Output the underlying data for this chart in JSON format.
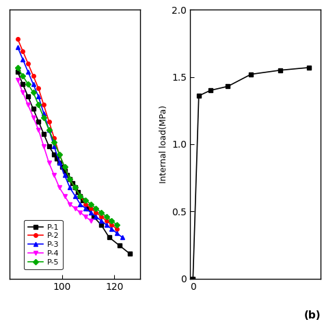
{
  "left_panel": {
    "series": {
      "P-1": {
        "color": "#000000",
        "marker": "s",
        "x": [
          83,
          85,
          87,
          89,
          91,
          93,
          95,
          97,
          98,
          99,
          100,
          101,
          102,
          103,
          104,
          105,
          106,
          107,
          108,
          110,
          112,
          115,
          118,
          122,
          126
        ],
        "y": [
          60,
          57,
          54,
          51,
          48,
          45,
          42,
          40,
          39,
          38,
          37,
          36,
          35,
          34,
          33,
          32,
          31,
          30,
          29,
          27,
          25,
          23,
          20,
          18,
          16
        ]
      },
      "P-2": {
        "color": "#ff0000",
        "marker": "o",
        "x": [
          83,
          85,
          87,
          89,
          91,
          93,
          95,
          97,
          99,
          101,
          103,
          105,
          107,
          109,
          111,
          113,
          115,
          117,
          119,
          121
        ],
        "y": [
          68,
          65,
          62,
          59,
          56,
          52,
          48,
          44,
          40,
          37,
          34,
          32,
          30,
          28,
          27,
          26,
          25,
          24,
          23,
          22
        ]
      },
      "P-3": {
        "color": "#0000ff",
        "marker": "^",
        "x": [
          83,
          85,
          87,
          89,
          91,
          93,
          95,
          97,
          99,
          101,
          103,
          105,
          107,
          109,
          111,
          113,
          115,
          117,
          119,
          121,
          123
        ],
        "y": [
          66,
          63,
          60,
          57,
          54,
          50,
          46,
          42,
          38,
          35,
          32,
          30,
          28,
          27,
          26,
          25,
          24,
          23,
          22,
          21,
          20
        ]
      },
      "P-4": {
        "color": "#ff00ff",
        "marker": "v",
        "x": [
          83,
          85,
          87,
          89,
          91,
          93,
          95,
          97,
          99,
          101,
          103,
          105,
          107,
          109,
          111
        ],
        "y": [
          58,
          55,
          52,
          49,
          46,
          42,
          38,
          35,
          32,
          30,
          28,
          27,
          26,
          25,
          24
        ]
      },
      "P-5": {
        "color": "#00aa00",
        "marker": "D",
        "x": [
          83,
          85,
          87,
          89,
          91,
          93,
          95,
          97,
          99,
          101,
          103,
          105,
          107,
          109,
          111,
          113,
          115,
          117,
          119,
          121
        ],
        "y": [
          61,
          59,
          57,
          55,
          52,
          49,
          46,
          43,
          40,
          37,
          34,
          32,
          30,
          29,
          28,
          27,
          26,
          25,
          24,
          23
        ]
      }
    },
    "xlim": [
      80,
      130
    ],
    "ylim": [
      10,
      75
    ],
    "xticks": [
      100,
      120
    ],
    "xlabel": "",
    "ylabel": ""
  },
  "right_panel": {
    "x": [
      0,
      1,
      3,
      6,
      10,
      15,
      20
    ],
    "y": [
      0.0,
      1.36,
      1.4,
      1.43,
      1.52,
      1.55,
      1.57
    ],
    "color": "#000000",
    "marker": "s",
    "xlim": [
      -0.5,
      22
    ],
    "ylim": [
      0,
      2.0
    ],
    "yticks": [
      0.0,
      0.5,
      1.0,
      1.5,
      2.0
    ],
    "ytick_labels": [
      "0",
      "0.5",
      "1.0",
      "1.5",
      "2.0"
    ],
    "xticks": [
      0
    ],
    "xtick_labels": [
      "0"
    ],
    "ylabel": "Internal load(MPa)",
    "xlabel": "",
    "label_b": "(b)"
  },
  "background_color": "#ffffff"
}
